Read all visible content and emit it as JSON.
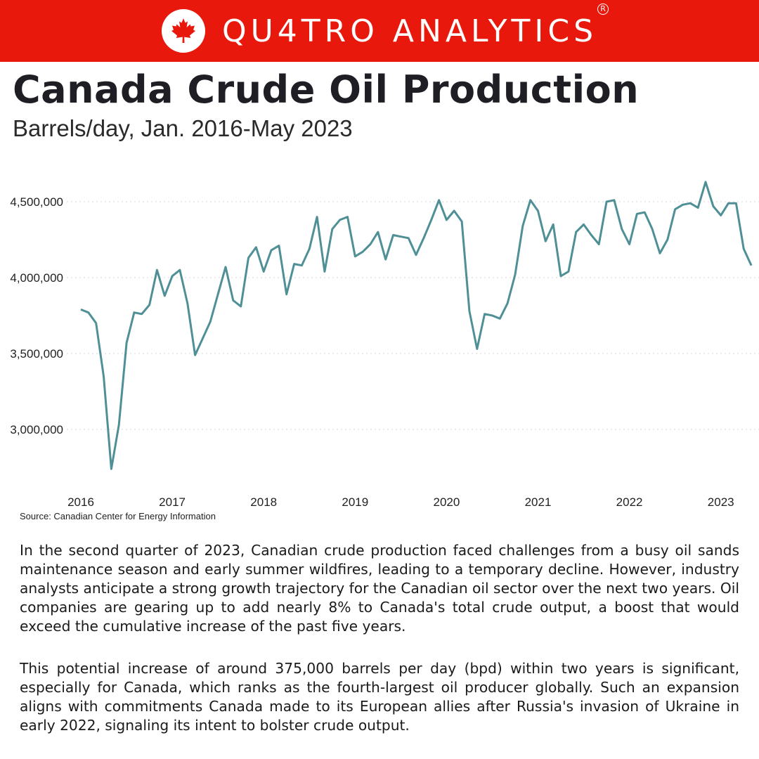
{
  "header": {
    "brand_name": "QU4TRO ANALYTICS",
    "registered_mark": "R",
    "logo_icon": "maple-leaf-icon",
    "banner_color": "#e8190c"
  },
  "title": "Canada Crude Oil Production",
  "subtitle": "Barrels/day, Jan. 2016-May 2023",
  "source": "Source: Canadian Center for Energy Information",
  "paragraphs": [
    "In the second quarter of 2023, Canadian crude production faced challenges from a busy oil sands maintenance season and early summer wildfires, leading to a temporary decline. However, industry analysts anticipate a strong growth trajectory for the Canadian oil sector over the next two years. Oil companies are gearing up to add nearly 8% to Canada's total crude output, a boost that would exceed the cumulative increase of the past five years.",
    "This potential increase of around 375,000 barrels per day (bpd) within two years is significant, especially for Canada, which ranks as the fourth-largest oil producer globally. Such an expansion aligns with commitments Canada made to its European allies after Russia's invasion of Ukraine in early 2022, signaling its intent to bolster crude output."
  ],
  "chart_data": {
    "type": "line",
    "title": "",
    "xlabel": "",
    "ylabel": "",
    "line_color": "#4f8f96",
    "grid": "horizontal dotted",
    "legend": "none",
    "ylim": [
      2700000,
      4650000
    ],
    "yticks": [
      3000000,
      3500000,
      4000000,
      4500000
    ],
    "ytick_labels": [
      "3,000,000",
      "3,500,000",
      "4,000,000",
      "4,500,000"
    ],
    "xticks": [
      "2016",
      "2017",
      "2018",
      "2019",
      "2020",
      "2021",
      "2022",
      "2023"
    ],
    "start": "2016-01",
    "series": [
      {
        "values": [
          3790000,
          3770000,
          3700000,
          3350000,
          2740000,
          3030000,
          3570000,
          3770000,
          3760000,
          3820000,
          4050000,
          3880000,
          4010000,
          4050000,
          3830000,
          3490000,
          3600000,
          3710000,
          3890000,
          4070000,
          3850000,
          3810000,
          4130000,
          4200000,
          4040000,
          4180000,
          4210000,
          3890000,
          4090000,
          4080000,
          4190000,
          4400000,
          4040000,
          4320000,
          4380000,
          4400000,
          4140000,
          4170000,
          4220000,
          4300000,
          4120000,
          4280000,
          4270000,
          4260000,
          4150000,
          4260000,
          4380000,
          4510000,
          4380000,
          4440000,
          4370000,
          3780000,
          3530000,
          3760000,
          3750000,
          3730000,
          3830000,
          4020000,
          4340000,
          4510000,
          4440000,
          4240000,
          4350000,
          4010000,
          4040000,
          4300000,
          4350000,
          4280000,
          4220000,
          4500000,
          4510000,
          4320000,
          4220000,
          4420000,
          4430000,
          4320000,
          4160000,
          4250000,
          4450000,
          4480000,
          4490000,
          4460000,
          4630000,
          4470000,
          4410000,
          4490000,
          4490000,
          4190000,
          4080000
        ]
      }
    ]
  }
}
